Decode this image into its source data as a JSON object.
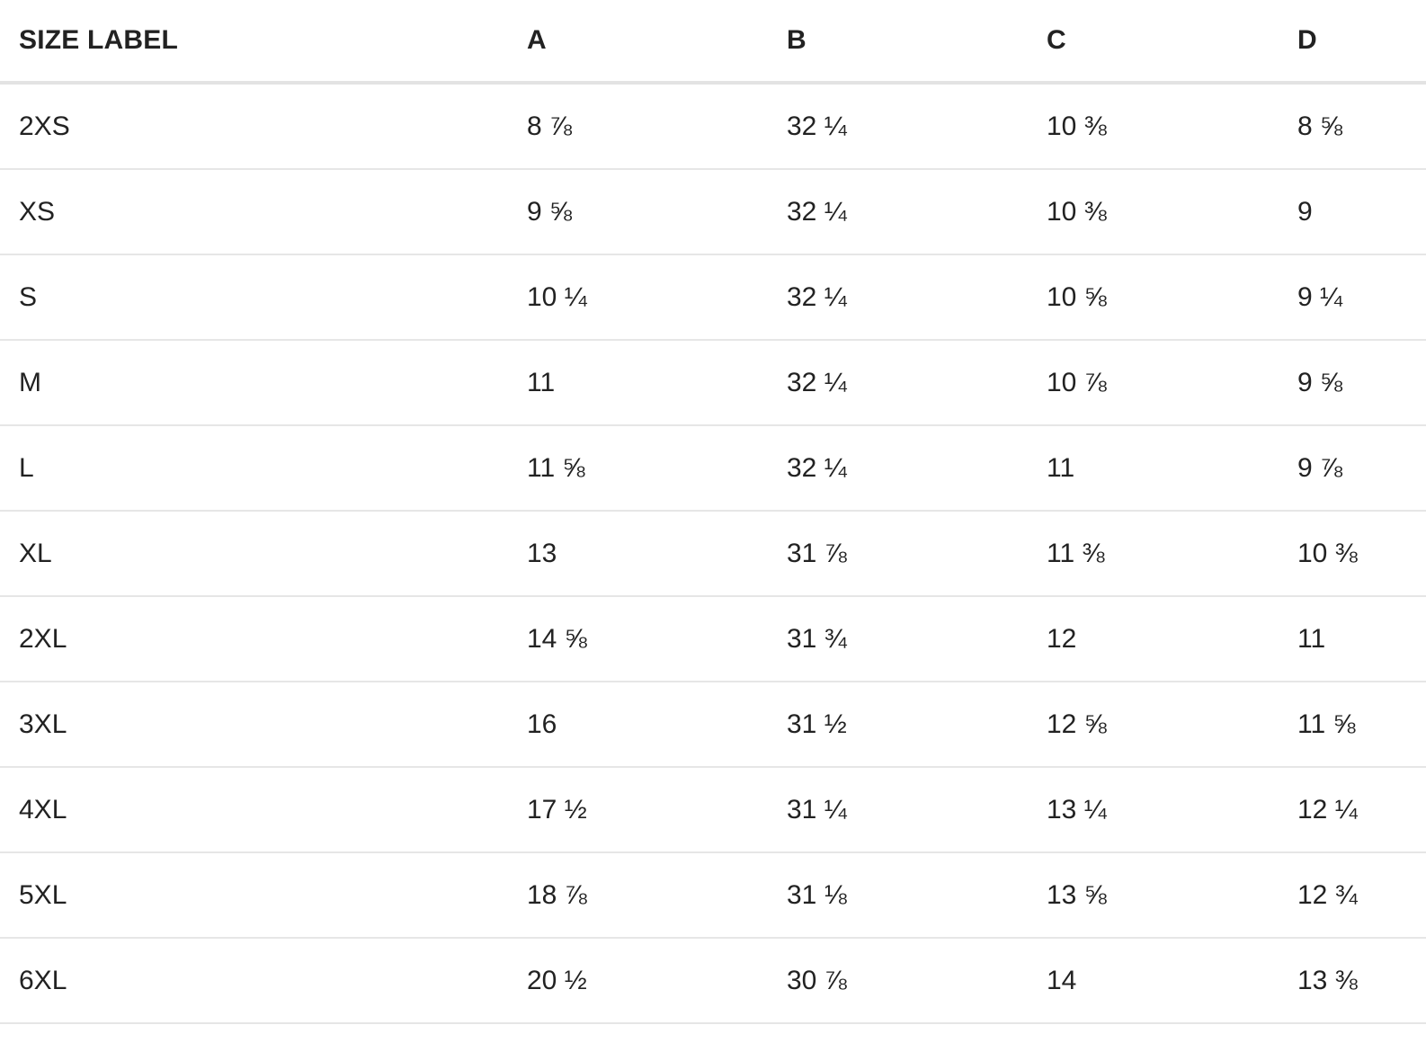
{
  "table": {
    "headers": [
      "SIZE LABEL",
      "A",
      "B",
      "C",
      "D"
    ],
    "rows": [
      [
        "2XS",
        "8 ⅞",
        "32 ¼",
        "10 ⅜",
        "8 ⅝"
      ],
      [
        "XS",
        "9 ⅝",
        "32 ¼",
        "10 ⅜",
        "9"
      ],
      [
        "S",
        "10 ¼",
        "32 ¼",
        "10 ⅝",
        "9 ¼"
      ],
      [
        "M",
        "11",
        "32 ¼",
        "10 ⅞",
        "9 ⅝"
      ],
      [
        "L",
        "11 ⅝",
        "32 ¼",
        "11",
        "9 ⅞"
      ],
      [
        "XL",
        "13",
        "31 ⅞",
        "11 ⅜",
        "10 ⅜"
      ],
      [
        "2XL",
        "14 ⅝",
        "31 ¾",
        "12",
        "11"
      ],
      [
        "3XL",
        "16",
        "31 ½",
        "12 ⅝",
        "11 ⅝"
      ],
      [
        "4XL",
        "17 ½",
        "31 ¼",
        "13 ¼",
        "12 ¼"
      ],
      [
        "5XL",
        "18 ⅞",
        "31 ⅛",
        "13 ⅝",
        "12 ¾"
      ],
      [
        "6XL",
        "20 ½",
        "30 ⅞",
        "14",
        "13 ⅜"
      ]
    ]
  }
}
